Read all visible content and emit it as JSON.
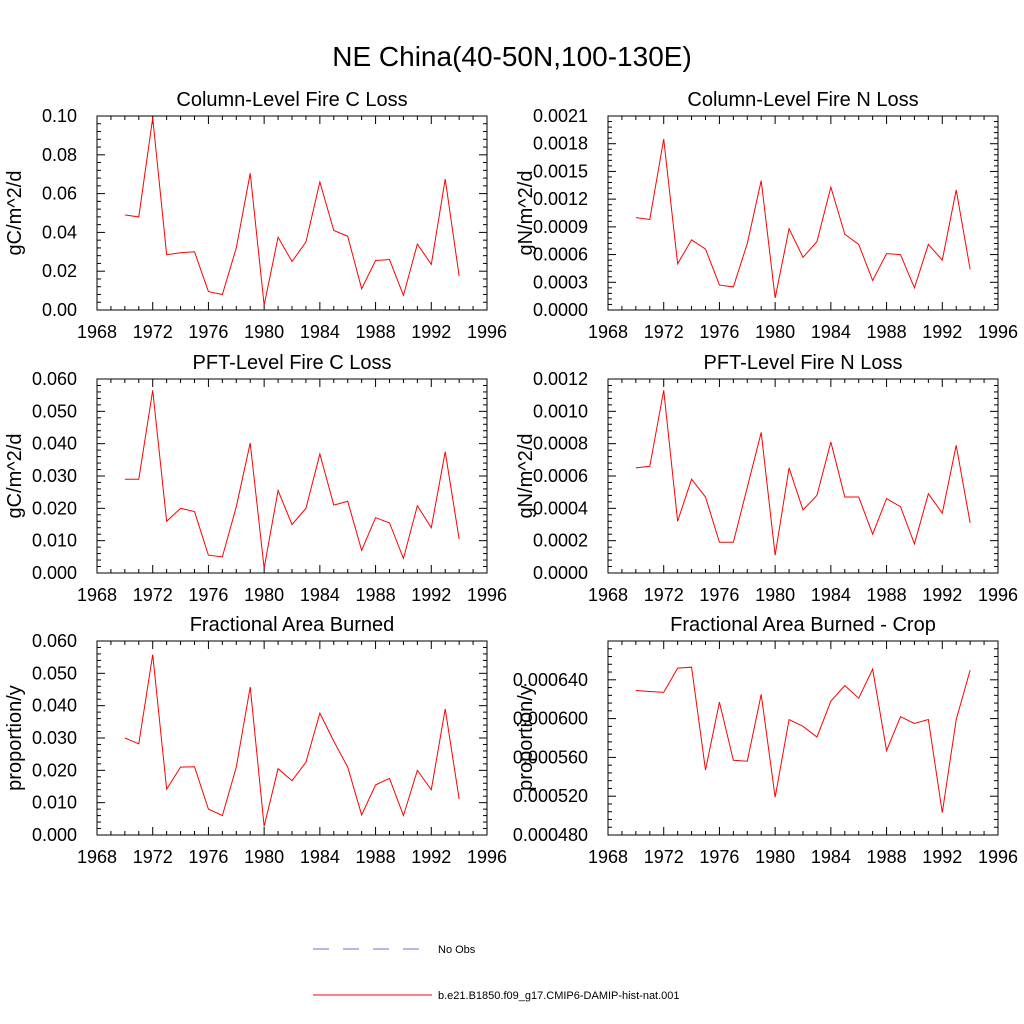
{
  "figure": {
    "title": "NE China(40-50N,100-130E)",
    "line_color": "#ff0000",
    "obs_color": "#6f6fd0"
  },
  "legend": {
    "position": "bottom-center",
    "items": [
      {
        "label": "No Obs",
        "style": "dashed",
        "color": "#6f6fd0"
      },
      {
        "label": "b.e21.B1850.f09_g17.CMIP6-DAMIP-hist-nat.001",
        "style": "solid",
        "color": "#ff0000"
      }
    ]
  },
  "chart_data": [
    {
      "type": "line",
      "title": "Column-Level Fire C Loss",
      "ylabel": "gC/m^2/d",
      "xlim": [
        1968,
        1996
      ],
      "ylim": [
        0,
        0.1
      ],
      "xticks": [
        "1968",
        "1972",
        "1976",
        "1980",
        "1984",
        "1988",
        "1992",
        "1996"
      ],
      "yticks": [
        "0.00",
        "0.02",
        "0.04",
        "0.06",
        "0.08",
        "0.10"
      ],
      "x": [
        1970,
        1971,
        1972,
        1973,
        1974,
        1975,
        1976,
        1977,
        1978,
        1979,
        1980,
        1981,
        1982,
        1983,
        1984,
        1985,
        1986,
        1987,
        1988,
        1989,
        1990,
        1991,
        1992,
        1993,
        1994
      ],
      "series": [
        {
          "name": "b.e21.B1850.f09_g17.CMIP6-DAMIP-hist-nat.001",
          "values": [
            0.049,
            0.048,
            0.099,
            0.0285,
            0.0295,
            0.03,
            0.0095,
            0.008,
            0.032,
            0.0705,
            0.0025,
            0.0375,
            0.025,
            0.035,
            0.066,
            0.041,
            0.038,
            0.011,
            0.0255,
            0.026,
            0.0075,
            0.034,
            0.0235,
            0.0675,
            0.0175
          ]
        }
      ]
    },
    {
      "type": "line",
      "title": "Column-Level Fire N Loss",
      "ylabel": "gN/m^2/d",
      "xlim": [
        1968,
        1996
      ],
      "ylim": [
        0,
        0.0021
      ],
      "xticks": [
        "1968",
        "1972",
        "1976",
        "1980",
        "1984",
        "1988",
        "1992",
        "1996"
      ],
      "yticks": [
        "0.0000",
        "0.0003",
        "0.0006",
        "0.0009",
        "0.0012",
        "0.0015",
        "0.0018",
        "0.0021"
      ],
      "x": [
        1970,
        1971,
        1972,
        1973,
        1974,
        1975,
        1976,
        1977,
        1978,
        1979,
        1980,
        1981,
        1982,
        1983,
        1984,
        1985,
        1986,
        1987,
        1988,
        1989,
        1990,
        1991,
        1992,
        1993,
        1994
      ],
      "series": [
        {
          "name": "b.e21.B1850.f09_g17.CMIP6-DAMIP-hist-nat.001",
          "values": [
            0.001,
            0.00098,
            0.00185,
            0.0005,
            0.00076,
            0.00066,
            0.00027,
            0.00025,
            0.00072,
            0.0014,
            0.00013,
            0.00088,
            0.00057,
            0.00074,
            0.00133,
            0.00082,
            0.00071,
            0.00032,
            0.00061,
            0.0006,
            0.00024,
            0.00071,
            0.00054,
            0.0013,
            0.00044
          ]
        }
      ]
    },
    {
      "type": "line",
      "title": "PFT-Level Fire C Loss",
      "ylabel": "gC/m^2/d",
      "xlim": [
        1968,
        1996
      ],
      "ylim": [
        0,
        0.06
      ],
      "xticks": [
        "1968",
        "1972",
        "1976",
        "1980",
        "1984",
        "1988",
        "1992",
        "1996"
      ],
      "yticks": [
        "0.000",
        "0.010",
        "0.020",
        "0.030",
        "0.040",
        "0.050",
        "0.060"
      ],
      "x": [
        1970,
        1971,
        1972,
        1973,
        1974,
        1975,
        1976,
        1977,
        1978,
        1979,
        1980,
        1981,
        1982,
        1983,
        1984,
        1985,
        1986,
        1987,
        1988,
        1989,
        1990,
        1991,
        1992,
        1993,
        1994
      ],
      "series": [
        {
          "name": "b.e21.B1850.f09_g17.CMIP6-DAMIP-hist-nat.001",
          "values": [
            0.029,
            0.029,
            0.0565,
            0.016,
            0.02,
            0.019,
            0.0055,
            0.005,
            0.0205,
            0.0402,
            0.0015,
            0.0255,
            0.015,
            0.02,
            0.0368,
            0.021,
            0.0222,
            0.007,
            0.0171,
            0.0155,
            0.0045,
            0.0208,
            0.014,
            0.0375,
            0.0105
          ]
        }
      ]
    },
    {
      "type": "line",
      "title": "PFT-Level Fire N Loss",
      "ylabel": "gN/m^2/d",
      "xlim": [
        1968,
        1996
      ],
      "ylim": [
        0,
        0.0012
      ],
      "xticks": [
        "1968",
        "1972",
        "1976",
        "1980",
        "1984",
        "1988",
        "1992",
        "1996"
      ],
      "yticks": [
        "0.0000",
        "0.0002",
        "0.0004",
        "0.0006",
        "0.0008",
        "0.0010",
        "0.0012"
      ],
      "x": [
        1970,
        1971,
        1972,
        1973,
        1974,
        1975,
        1976,
        1977,
        1978,
        1979,
        1980,
        1981,
        1982,
        1983,
        1984,
        1985,
        1986,
        1987,
        1988,
        1989,
        1990,
        1991,
        1992,
        1993,
        1994
      ],
      "series": [
        {
          "name": "b.e21.B1850.f09_g17.CMIP6-DAMIP-hist-nat.001",
          "values": [
            0.00065,
            0.00066,
            0.00113,
            0.00032,
            0.00058,
            0.00047,
            0.00019,
            0.00019,
            0.00053,
            0.00087,
            0.00011,
            0.00065,
            0.00039,
            0.00048,
            0.00081,
            0.00047,
            0.00047,
            0.00024,
            0.00046,
            0.00041,
            0.00018,
            0.00049,
            0.00037,
            0.00079,
            0.00031
          ]
        }
      ]
    },
    {
      "type": "line",
      "title": "Fractional Area Burned",
      "ylabel": "proportion/y",
      "xlim": [
        1968,
        1996
      ],
      "ylim": [
        0,
        0.06
      ],
      "xticks": [
        "1968",
        "1972",
        "1976",
        "1980",
        "1984",
        "1988",
        "1992",
        "1996"
      ],
      "yticks": [
        "0.000",
        "0.010",
        "0.020",
        "0.030",
        "0.040",
        "0.050",
        "0.060"
      ],
      "x": [
        1970,
        1971,
        1972,
        1973,
        1974,
        1975,
        1976,
        1977,
        1978,
        1979,
        1980,
        1981,
        1982,
        1983,
        1984,
        1985,
        1986,
        1987,
        1988,
        1989,
        1990,
        1991,
        1992,
        1993,
        1994
      ],
      "series": [
        {
          "name": "b.e21.B1850.f09_g17.CMIP6-DAMIP-hist-nat.001",
          "values": [
            0.03,
            0.0282,
            0.0558,
            0.0142,
            0.021,
            0.0211,
            0.008,
            0.006,
            0.021,
            0.0458,
            0.0027,
            0.0205,
            0.0168,
            0.0225,
            0.0377,
            0.029,
            0.021,
            0.0062,
            0.0155,
            0.0175,
            0.006,
            0.02,
            0.014,
            0.039,
            0.0111
          ]
        }
      ]
    },
    {
      "type": "line",
      "title": "Fractional Area Burned - Crop",
      "ylabel": "proportion/y",
      "xlim": [
        1968,
        1996
      ],
      "ylim": [
        0.00048,
        0.00068
      ],
      "xticks": [
        "1968",
        "1972",
        "1976",
        "1980",
        "1984",
        "1988",
        "1992",
        "1996"
      ],
      "yticks": [
        "0.000480",
        "0.000520",
        "0.000560",
        "0.000600",
        "0.000640"
      ],
      "x": [
        1970,
        1971,
        1972,
        1973,
        1974,
        1975,
        1976,
        1977,
        1978,
        1979,
        1980,
        1981,
        1982,
        1983,
        1984,
        1985,
        1986,
        1987,
        1988,
        1989,
        1990,
        1991,
        1992,
        1993,
        1994
      ],
      "series": [
        {
          "name": "b.e21.B1850.f09_g17.CMIP6-DAMIP-hist-nat.001",
          "values": [
            0.000629,
            0.000628,
            0.000627,
            0.000652,
            0.000653,
            0.000547,
            0.000617,
            0.000557,
            0.000556,
            0.000625,
            0.000519,
            0.000599,
            0.000592,
            0.000581,
            0.000618,
            0.000634,
            0.000621,
            0.000651,
            0.000567,
            0.000602,
            0.000595,
            0.000599,
            0.000503,
            0.000599,
            0.00065
          ]
        }
      ]
    }
  ]
}
